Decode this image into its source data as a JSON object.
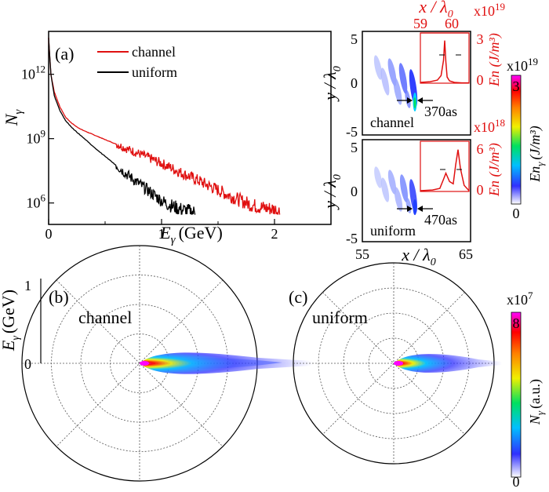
{
  "chart_data": [
    {
      "type": "line",
      "panel_label": "(a)",
      "xlabel_main": "E",
      "xlabel_sub": "γ",
      "xlabel_unit": "(GeV)",
      "ylabel_main": "N",
      "ylabel_sub": "γ",
      "xlim": [
        0,
        2.5
      ],
      "ylim": [
        100000,
        100000000000000.0
      ],
      "y_scale": "log",
      "x_ticks": [
        "0",
        "1",
        "2"
      ],
      "x_tick_values": [
        0,
        1,
        2
      ],
      "y_ticks": [
        {
          "base": "10",
          "exp": "12",
          "value": 1000000000000.0
        },
        {
          "base": "10",
          "exp": "9",
          "value": 1000000000.0
        },
        {
          "base": "10",
          "exp": "6",
          "value": 1000000.0
        }
      ],
      "legend_position": "top",
      "series": [
        {
          "name": "channel",
          "color": "#e01010",
          "x": [
            0.0,
            0.02,
            0.05,
            0.1,
            0.15,
            0.2,
            0.25,
            0.3,
            0.4,
            0.5,
            0.6,
            0.7,
            0.8,
            0.9,
            1.0,
            1.1,
            1.2,
            1.3,
            1.4,
            1.5,
            1.6,
            1.7,
            1.8,
            1.9,
            2.0,
            2.05
          ],
          "y": [
            50000000000000.0,
            1000000000000.0,
            150000000000.0,
            30000000000.0,
            10000000000.0,
            5500000000.0,
            3500000000.0,
            2500000000.0,
            1500000000.0,
            900000000.0,
            550000000.0,
            320000000.0,
            200000000.0,
            120000000.0,
            70000000.0,
            40000000.0,
            22000000.0,
            13000000.0,
            7000000.0,
            4000000.0,
            2200000.0,
            1300000.0,
            800000.0,
            600000.0,
            500000.0,
            400000.0
          ]
        },
        {
          "name": "uniform",
          "color": "#000000",
          "x": [
            0.0,
            0.02,
            0.05,
            0.1,
            0.15,
            0.2,
            0.25,
            0.3,
            0.35,
            0.4,
            0.5,
            0.6,
            0.7,
            0.8,
            0.9,
            1.0,
            1.05,
            1.1,
            1.15,
            1.2,
            1.25,
            1.3
          ],
          "y": [
            50000000000000.0,
            1000000000000.0,
            100000000000.0,
            20000000000.0,
            7000000000.0,
            3500000000.0,
            2000000000.0,
            1200000000.0,
            700000000.0,
            400000000.0,
            150000000.0,
            55000000.0,
            20000000.0,
            8000000.0,
            3200000.0,
            1300000.0,
            900000.0,
            700000.0,
            550000.0,
            450000.0,
            400000.0,
            350000.0
          ]
        }
      ]
    },
    {
      "type": "heatmap",
      "name": "channel",
      "label": "channel",
      "xlim": [
        55,
        65
      ],
      "ylim": [
        -5,
        5
      ],
      "y_ticks": [
        "5",
        "0",
        "-5"
      ],
      "x_ticks_top": [
        "59",
        "60"
      ],
      "xlabel_top": "x / λ",
      "xlabel_top_sub": "0",
      "ylabel": "y / λ",
      "ylabel_sub": "0",
      "inset": {
        "scale_label": "x10",
        "scale_exp": "19",
        "ylabel": "En (J/m³)",
        "y_ticks": [
          "3",
          "0"
        ],
        "y_tick_values": [
          3,
          0
        ],
        "ylim": [
          0,
          3.3
        ],
        "xlim": [
          59,
          61
        ],
        "x": [
          59.0,
          59.4,
          59.7,
          59.85,
          59.95,
          60.0,
          60.05,
          60.1,
          60.2,
          60.4,
          60.7,
          61.0
        ],
        "y": [
          0.05,
          0.1,
          0.2,
          0.5,
          1.5,
          2.8,
          1.4,
          0.4,
          0.15,
          0.05,
          0.02,
          0.02
        ],
        "color": "#e01010"
      },
      "annotation": "370as"
    },
    {
      "type": "heatmap",
      "name": "uniform",
      "label": "uniform",
      "xlim": [
        55,
        65
      ],
      "ylim": [
        -5,
        5
      ],
      "x_ticks": [
        "55",
        "65"
      ],
      "y_ticks": [
        "5",
        "0",
        "-5"
      ],
      "xlabel": "x / λ",
      "xlabel_sub": "0",
      "ylabel": "y / λ",
      "ylabel_sub": "0",
      "inset": {
        "scale_label": "x10",
        "scale_exp": "18",
        "ylabel": "En (J/m³)",
        "y_ticks": [
          "6",
          "0"
        ],
        "y_tick_values": [
          6,
          0
        ],
        "ylim": [
          0,
          6.6
        ],
        "xlim": [
          59,
          61
        ],
        "x": [
          59.0,
          59.5,
          59.8,
          59.95,
          60.05,
          60.2,
          60.35,
          60.45,
          60.55,
          60.65,
          60.8,
          61.0
        ],
        "y": [
          0.1,
          0.2,
          0.4,
          1.6,
          2.4,
          1.3,
          1.0,
          3.5,
          5.5,
          3.0,
          0.8,
          0.1
        ],
        "color": "#e01010"
      },
      "annotation": "470as",
      "colorbar": {
        "scale_label": "x10",
        "scale_exp": "19",
        "ticks": [
          "3",
          "0"
        ],
        "label": "En",
        "label_sub": "γ",
        "label_unit": "(J/m³)"
      }
    },
    {
      "type": "polar",
      "panel_label": "(b)",
      "label": "channel",
      "rlim": [
        0,
        1
      ],
      "ylabel_main": "E",
      "ylabel_sub": "γ",
      "ylabel_unit": "(GeV)",
      "r_ticks": [
        "1",
        "0"
      ]
    },
    {
      "type": "polar",
      "panel_label": "(c)",
      "label": "uniform",
      "rlim": [
        0,
        1
      ],
      "colorbar": {
        "scale_label": "x10",
        "scale_exp": "7",
        "ticks": [
          "8",
          "0"
        ],
        "label": "N",
        "label_sub": "γ",
        "label_unit": "(a.u.)"
      }
    }
  ],
  "colormap": [
    "#ffffff",
    "#3030ff",
    "#00c0ff",
    "#00e060",
    "#f0f000",
    "#ff8000",
    "#ff0000",
    "#ff00ff"
  ]
}
